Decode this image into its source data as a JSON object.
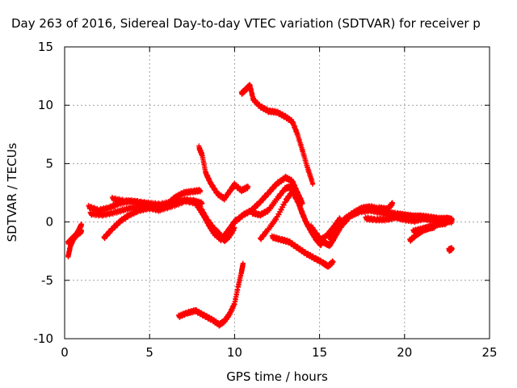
{
  "chart_data": {
    "type": "scatter",
    "title": "Day 263 of 2016, Sidereal Day-to-day VTEC variation (SDTVAR) for receiver p",
    "xlabel": "GPS time / hours",
    "ylabel": "SDTVAR / TECUs",
    "xlim": [
      0,
      25
    ],
    "ylim": [
      -10,
      15
    ],
    "xticks": [
      "0",
      "5",
      "10",
      "15",
      "20",
      "25"
    ],
    "yticks": [
      "-10",
      "-5",
      "0",
      "5",
      "10",
      "15"
    ],
    "grid": true,
    "legend": "none",
    "marker": "plus",
    "color": "#ff0000",
    "series": [
      {
        "name": "s1",
        "x": [
          0.2,
          0.35,
          0.5,
          0.65,
          0.8,
          1.0
        ],
        "y": [
          -3.0,
          -2.0,
          -1.5,
          -1.2,
          -0.8,
          -0.2
        ]
      },
      {
        "name": "s2",
        "x": [
          0.2,
          0.4,
          0.6,
          0.8,
          1.0
        ],
        "y": [
          -1.8,
          -1.5,
          -1.2,
          -1.0,
          -0.8
        ]
      },
      {
        "name": "s3",
        "x": [
          1.4,
          2.0,
          2.6,
          3.2,
          3.8,
          4.4,
          5.0,
          5.6,
          6.0,
          6.5,
          7.0,
          7.5,
          8.0
        ],
        "y": [
          1.3,
          1.0,
          1.2,
          1.6,
          1.8,
          1.7,
          1.5,
          1.2,
          1.5,
          2.1,
          2.5,
          2.6,
          2.7
        ]
      },
      {
        "name": "s4",
        "x": [
          1.5,
          2.2,
          2.9,
          3.6,
          4.3,
          5.0,
          5.7,
          6.4,
          7.1,
          7.8
        ],
        "y": [
          0.7,
          0.6,
          0.8,
          1.1,
          1.3,
          1.3,
          1.1,
          1.4,
          1.8,
          1.6
        ]
      },
      {
        "name": "s5",
        "x": [
          2.3,
          2.8,
          3.3,
          3.8,
          4.4,
          5.0,
          5.6,
          6.2,
          6.6
        ],
        "y": [
          -1.4,
          -0.6,
          0.1,
          0.6,
          1.0,
          1.2,
          1.0,
          1.6,
          2.0
        ]
      },
      {
        "name": "s6",
        "x": [
          2.8,
          3.5,
          4.2,
          4.9,
          5.6,
          6.3,
          7.0,
          7.6,
          8.1
        ],
        "y": [
          2.0,
          1.8,
          1.7,
          1.6,
          1.5,
          1.7,
          1.9,
          1.8,
          1.6
        ]
      },
      {
        "name": "s7",
        "x": [
          7.6,
          7.9,
          8.2,
          8.5,
          8.8,
          9.2,
          9.5,
          9.8,
          10.1
        ],
        "y": [
          1.8,
          1.2,
          0.5,
          -0.3,
          -1.0,
          -1.5,
          -1.0,
          -0.4,
          0.2
        ]
      },
      {
        "name": "s8",
        "x": [
          8.0,
          8.4,
          8.8,
          9.1,
          9.4,
          9.7,
          10.0
        ],
        "y": [
          1.2,
          0.2,
          -0.6,
          -1.0,
          -1.6,
          -1.2,
          -0.5
        ]
      },
      {
        "name": "s9",
        "x": [
          7.9,
          8.1,
          8.3,
          8.6,
          9.0,
          9.4,
          9.8,
          10.0,
          10.4,
          10.8
        ],
        "y": [
          6.4,
          5.7,
          4.2,
          3.3,
          2.4,
          2.0,
          2.8,
          3.2,
          2.7,
          3.0
        ]
      },
      {
        "name": "s10",
        "x": [
          6.7,
          7.2,
          7.7,
          8.2,
          8.7,
          9.1,
          9.4,
          9.7,
          10.0,
          10.2,
          10.4,
          10.5
        ],
        "y": [
          -8.1,
          -7.8,
          -7.6,
          -8.0,
          -8.4,
          -8.8,
          -8.5,
          -7.9,
          -7.0,
          -5.6,
          -4.3,
          -3.6
        ]
      },
      {
        "name": "s11",
        "x": [
          10.4,
          10.7,
          10.9,
          11.1,
          11.5,
          12.0,
          12.5,
          13.0,
          13.4,
          13.7,
          14.0,
          14.3,
          14.6
        ],
        "y": [
          11.0,
          11.4,
          11.7,
          10.5,
          9.9,
          9.5,
          9.4,
          9.0,
          8.6,
          7.5,
          6.1,
          4.6,
          3.3
        ]
      },
      {
        "name": "s12",
        "x": [
          9.5,
          10.0,
          10.5,
          11.0,
          11.5,
          12.0,
          12.5,
          13.0,
          13.4,
          13.7,
          14.0
        ],
        "y": [
          -1.0,
          0.0,
          0.6,
          1.0,
          1.7,
          2.5,
          3.3,
          3.8,
          3.5,
          2.5,
          1.6
        ]
      },
      {
        "name": "s13",
        "x": [
          11.0,
          11.5,
          12.0,
          12.5,
          13.0,
          13.3,
          13.6,
          13.9,
          14.2,
          14.5,
          14.8,
          15.1
        ],
        "y": [
          0.8,
          0.6,
          1.0,
          2.0,
          2.9,
          3.0,
          2.4,
          1.0,
          0.0,
          -0.8,
          -1.5,
          -2.0
        ]
      },
      {
        "name": "s14",
        "x": [
          11.5,
          12.0,
          12.5,
          13.0,
          13.4,
          13.8,
          14.2,
          14.6,
          15.0,
          15.4,
          15.8,
          16.2
        ],
        "y": [
          -1.5,
          -0.6,
          0.4,
          1.8,
          2.6,
          1.5,
          0.0,
          -1.0,
          -1.6,
          -1.2,
          -0.5,
          0.3
        ]
      },
      {
        "name": "s15",
        "x": [
          12.2,
          12.7,
          13.2,
          13.7,
          14.2,
          14.7,
          15.2,
          15.5,
          15.8
        ],
        "y": [
          -1.3,
          -1.5,
          -1.7,
          -2.2,
          -2.7,
          -3.1,
          -3.5,
          -3.8,
          -3.4
        ]
      },
      {
        "name": "s16",
        "x": [
          14.5,
          14.9,
          15.3,
          15.6,
          15.9,
          16.3,
          16.8,
          17.4,
          18.0,
          18.6,
          19.2,
          19.8,
          20.4,
          21.0,
          21.6,
          22.2,
          22.8
        ],
        "y": [
          -0.4,
          -1.2,
          -1.8,
          -2.0,
          -1.3,
          -0.3,
          0.5,
          0.9,
          1.0,
          0.8,
          0.6,
          0.4,
          0.5,
          0.3,
          0.2,
          0.1,
          0.0
        ]
      },
      {
        "name": "s17",
        "x": [
          15.6,
          16.0,
          16.5,
          17.0,
          17.5,
          18.0,
          18.5,
          19.0,
          19.5,
          20.0,
          20.5,
          21.0,
          21.5,
          22.0,
          22.5,
          22.8
        ],
        "y": [
          -1.5,
          -0.6,
          0.3,
          0.8,
          1.2,
          1.3,
          1.1,
          0.8,
          0.7,
          0.6,
          0.5,
          0.5,
          0.4,
          0.3,
          0.3,
          0.2
        ]
      },
      {
        "name": "s18",
        "x": [
          17.7,
          18.3,
          18.9,
          19.5,
          20.0,
          20.6,
          21.2,
          21.8,
          22.4,
          22.8
        ],
        "y": [
          0.3,
          0.2,
          0.2,
          0.4,
          0.2,
          0.1,
          0.3,
          0.1,
          0.0,
          0.2
        ]
      },
      {
        "name": "s19",
        "x": [
          20.3,
          20.7,
          21.1,
          21.5,
          21.8
        ],
        "y": [
          -1.6,
          -1.1,
          -0.7,
          -0.5,
          -0.4
        ]
      },
      {
        "name": "s20",
        "x": [
          20.5,
          21.0,
          21.5,
          22.0,
          22.5
        ],
        "y": [
          -0.8,
          -0.6,
          -0.4,
          -0.2,
          -0.1
        ]
      },
      {
        "name": "s21",
        "x": [
          22.6,
          22.8
        ],
        "y": [
          -2.4,
          -2.3
        ]
      },
      {
        "name": "s22",
        "x": [
          18.5,
          19.0,
          19.3
        ],
        "y": [
          1.2,
          1.1,
          1.6
        ]
      }
    ]
  }
}
